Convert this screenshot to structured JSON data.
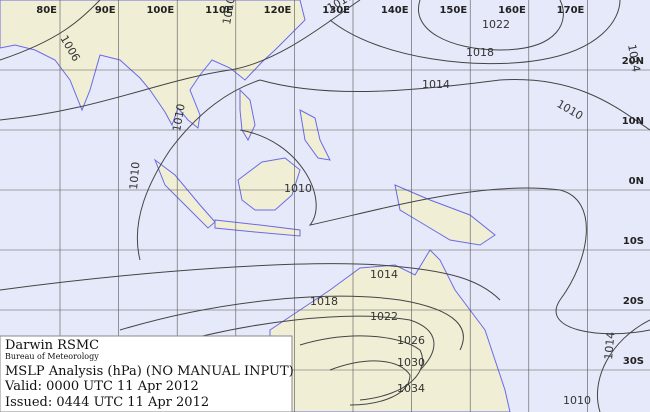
{
  "map": {
    "lon_labels": [
      "80E",
      "90E",
      "100E",
      "110E",
      "120E",
      "130E",
      "140E",
      "150E",
      "160E",
      "170E"
    ],
    "lat_labels": [
      "20N",
      "10N",
      "0N",
      "10S",
      "20S",
      "30S"
    ],
    "isobar_labels": [
      1006,
      1010,
      1010,
      1022,
      1018,
      1014,
      1010,
      1014,
      1010,
      1010,
      1010,
      1014,
      1018,
      1022,
      1026,
      1030,
      1034,
      1022,
      1026,
      1014,
      1010
    ],
    "info": {
      "office": "Darwin RSMC",
      "agency": "Bureau of Meteorology",
      "product": "MSLP Analysis (hPa) (NO MANUAL INPUT)",
      "valid": "Valid:  0000 UTC 11 Apr 2012",
      "issued": "Issued: 0444 UTC 11 Apr 2012"
    }
  }
}
